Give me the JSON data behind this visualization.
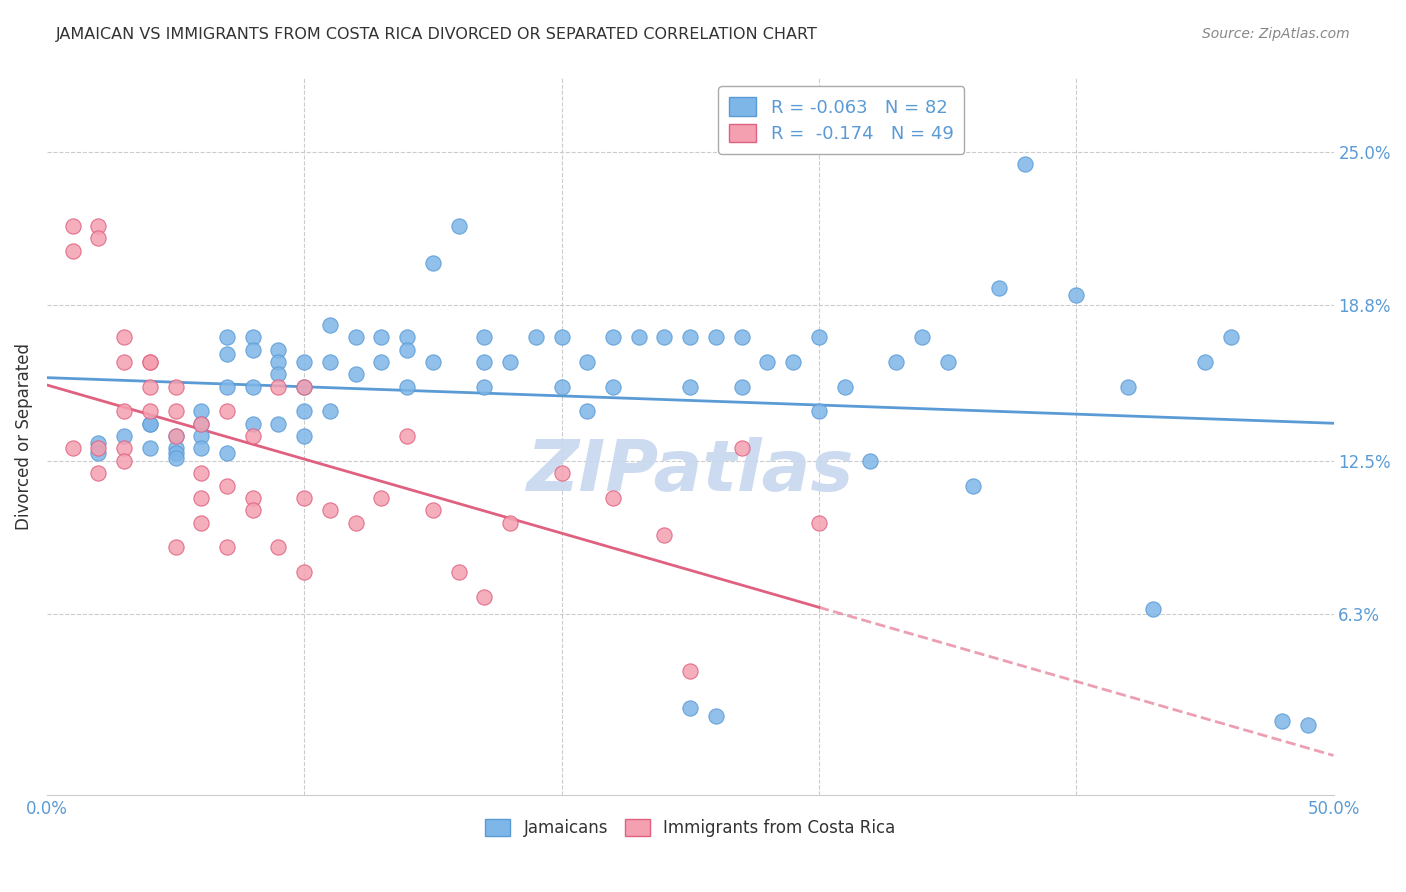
{
  "title": "JAMAICAN VS IMMIGRANTS FROM COSTA RICA DIVORCED OR SEPARATED CORRELATION CHART",
  "source": "Source: ZipAtlas.com",
  "ylabel": "Divorced or Separated",
  "ytick_labels": [
    "25.0%",
    "18.8%",
    "12.5%",
    "6.3%"
  ],
  "ytick_values": [
    0.25,
    0.188,
    0.125,
    0.063
  ],
  "xlim": [
    0.0,
    0.5
  ],
  "ylim": [
    -0.01,
    0.28
  ],
  "color_blue": "#7EB6E8",
  "color_pink": "#F4A0B0",
  "color_blue_line": "#5B9BD5",
  "color_pink_line": "#E06080",
  "color_watermark": "#C8D8F0",
  "blue_x": [
    0.02,
    0.02,
    0.03,
    0.04,
    0.04,
    0.04,
    0.05,
    0.05,
    0.05,
    0.05,
    0.06,
    0.06,
    0.06,
    0.06,
    0.07,
    0.07,
    0.07,
    0.07,
    0.08,
    0.08,
    0.08,
    0.08,
    0.09,
    0.09,
    0.09,
    0.09,
    0.1,
    0.1,
    0.1,
    0.1,
    0.11,
    0.11,
    0.11,
    0.12,
    0.12,
    0.13,
    0.13,
    0.14,
    0.14,
    0.14,
    0.15,
    0.15,
    0.16,
    0.17,
    0.17,
    0.17,
    0.18,
    0.19,
    0.2,
    0.2,
    0.21,
    0.21,
    0.22,
    0.22,
    0.23,
    0.24,
    0.25,
    0.25,
    0.26,
    0.27,
    0.27,
    0.28,
    0.29,
    0.3,
    0.3,
    0.31,
    0.32,
    0.33,
    0.34,
    0.35,
    0.36,
    0.37,
    0.38,
    0.4,
    0.42,
    0.43,
    0.45,
    0.46,
    0.48,
    0.49,
    0.25,
    0.26
  ],
  "blue_y": [
    0.132,
    0.128,
    0.135,
    0.13,
    0.14,
    0.14,
    0.135,
    0.13,
    0.128,
    0.126,
    0.145,
    0.14,
    0.135,
    0.13,
    0.175,
    0.168,
    0.155,
    0.128,
    0.175,
    0.17,
    0.155,
    0.14,
    0.17,
    0.165,
    0.16,
    0.14,
    0.165,
    0.155,
    0.145,
    0.135,
    0.18,
    0.165,
    0.145,
    0.175,
    0.16,
    0.175,
    0.165,
    0.175,
    0.17,
    0.155,
    0.205,
    0.165,
    0.22,
    0.175,
    0.165,
    0.155,
    0.165,
    0.175,
    0.175,
    0.155,
    0.165,
    0.145,
    0.175,
    0.155,
    0.175,
    0.175,
    0.175,
    0.155,
    0.175,
    0.175,
    0.155,
    0.165,
    0.165,
    0.175,
    0.145,
    0.155,
    0.125,
    0.165,
    0.175,
    0.165,
    0.115,
    0.195,
    0.245,
    0.192,
    0.155,
    0.065,
    0.165,
    0.175,
    0.02,
    0.018,
    0.025,
    0.022
  ],
  "pink_x": [
    0.01,
    0.01,
    0.01,
    0.02,
    0.02,
    0.02,
    0.02,
    0.03,
    0.03,
    0.03,
    0.03,
    0.03,
    0.04,
    0.04,
    0.04,
    0.04,
    0.05,
    0.05,
    0.05,
    0.05,
    0.06,
    0.06,
    0.06,
    0.06,
    0.07,
    0.07,
    0.07,
    0.08,
    0.08,
    0.08,
    0.09,
    0.09,
    0.1,
    0.1,
    0.1,
    0.11,
    0.12,
    0.13,
    0.14,
    0.15,
    0.16,
    0.17,
    0.18,
    0.2,
    0.22,
    0.24,
    0.25,
    0.27,
    0.3
  ],
  "pink_y": [
    0.13,
    0.22,
    0.21,
    0.22,
    0.215,
    0.13,
    0.12,
    0.175,
    0.165,
    0.145,
    0.13,
    0.125,
    0.165,
    0.165,
    0.155,
    0.145,
    0.155,
    0.145,
    0.135,
    0.09,
    0.14,
    0.12,
    0.11,
    0.1,
    0.145,
    0.115,
    0.09,
    0.135,
    0.11,
    0.105,
    0.155,
    0.09,
    0.155,
    0.11,
    0.08,
    0.105,
    0.1,
    0.11,
    0.135,
    0.105,
    0.08,
    0.07,
    0.1,
    0.12,
    0.11,
    0.095,
    0.04,
    0.13,
    0.1
  ]
}
